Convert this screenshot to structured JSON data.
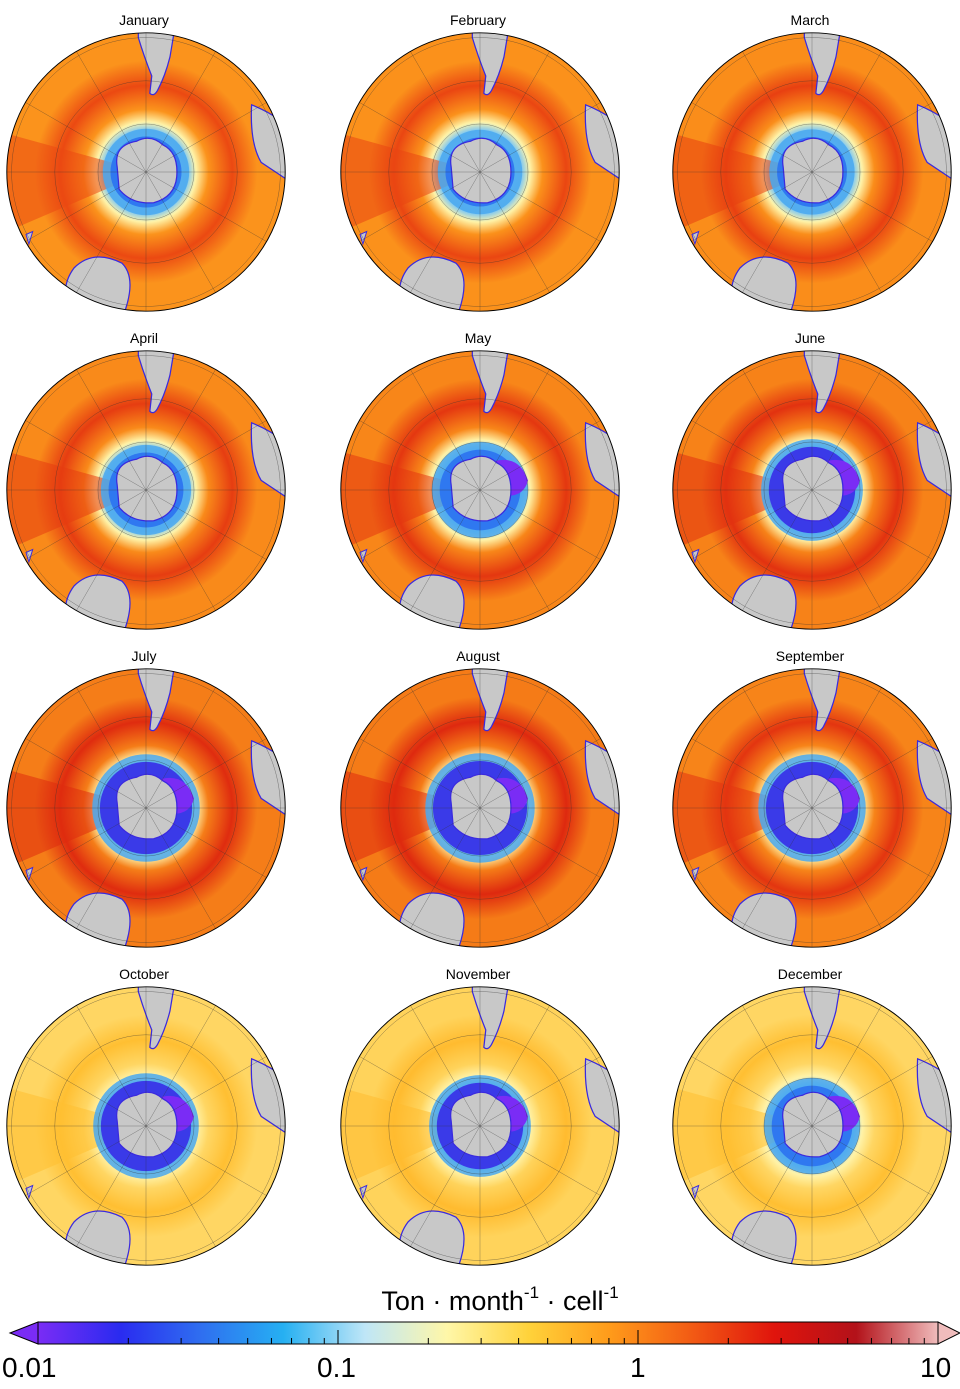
{
  "panels": [
    {
      "month": "January",
      "intensity": 0.62,
      "ice": 0.45
    },
    {
      "month": "February",
      "intensity": 0.64,
      "ice": 0.4
    },
    {
      "month": "March",
      "intensity": 0.68,
      "ice": 0.42
    },
    {
      "month": "April",
      "intensity": 0.7,
      "ice": 0.55
    },
    {
      "month": "May",
      "intensity": 0.74,
      "ice": 0.7
    },
    {
      "month": "June",
      "intensity": 0.78,
      "ice": 0.85
    },
    {
      "month": "July",
      "intensity": 0.82,
      "ice": 1.0
    },
    {
      "month": "August",
      "intensity": 0.84,
      "ice": 1.05
    },
    {
      "month": "September",
      "intensity": 0.76,
      "ice": 1.0
    },
    {
      "month": "October",
      "intensity": 0.3,
      "ice": 0.95
    },
    {
      "month": "November",
      "intensity": 0.34,
      "ice": 0.85
    },
    {
      "month": "December",
      "intensity": 0.3,
      "ice": 0.7
    }
  ],
  "colorbar": {
    "title": "Ton · month",
    "exp1": "-1",
    "mid": " · cell",
    "exp2": "-1",
    "ticks": [
      "0.01",
      "0.1",
      "1",
      "10"
    ],
    "colors": [
      "#7a2cf5",
      "#2a2bf0",
      "#2f6ff0",
      "#26b0f2",
      "#bfe6f7",
      "#fff7a8",
      "#ffd23a",
      "#ff9a1a",
      "#f25a14",
      "#e0140c",
      "#b3121a",
      "#f0bcbc"
    ]
  }
}
